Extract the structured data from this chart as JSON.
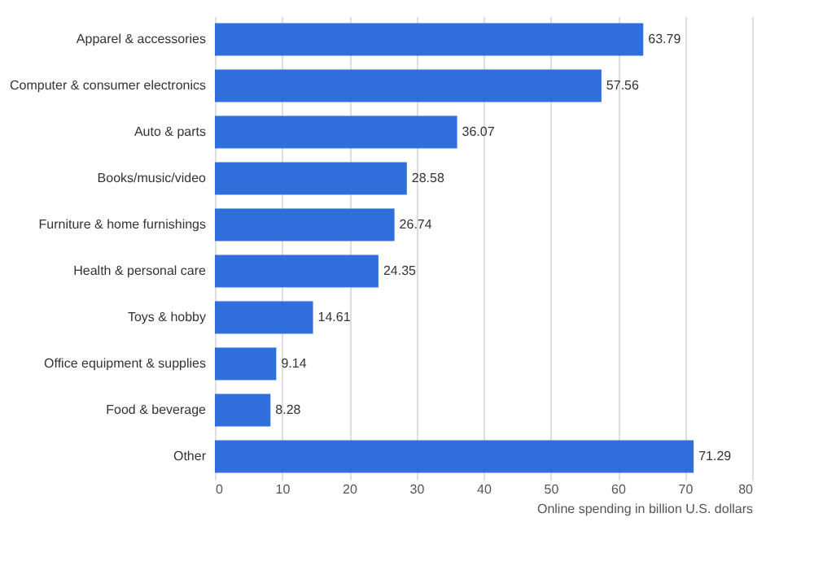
{
  "chart_data": {
    "type": "bar",
    "orientation": "horizontal",
    "categories": [
      "Apparel & accessories",
      "Computer & consumer electronics",
      "Auto & parts",
      "Books/music/video",
      "Furniture & home furnishings",
      "Health & personal care",
      "Toys & hobby",
      "Office equipment & supplies",
      "Food & beverage",
      "Other"
    ],
    "values": [
      63.79,
      57.56,
      36.07,
      28.58,
      26.74,
      24.35,
      14.61,
      9.14,
      8.28,
      71.29
    ],
    "color": "#2e6fdb",
    "xlabel": "Online spending in billion U.S. dollars",
    "xlim": [
      0,
      80
    ],
    "xticks": [
      0,
      10,
      20,
      30,
      40,
      50,
      60,
      70,
      80
    ],
    "grid": "x",
    "data_labels": true
  }
}
